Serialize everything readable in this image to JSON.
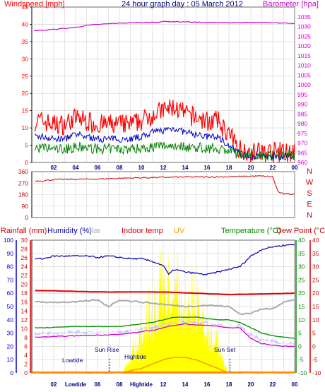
{
  "title": "24 hour graph day : 05 March 2012",
  "colors": {
    "wind": "#ff0000",
    "baro": "#cc00cc",
    "avgwind": "#0000cc",
    "minwind": "#008000",
    "dir": "#cc0000",
    "humidity": "#0000aa",
    "indoor": "#dd0000",
    "solar": "#aaaaaa",
    "uv": "#ff9900",
    "temperature": "#008800",
    "dewpoint": "#cc0000",
    "sunshine": "#ffff00",
    "rain": "#ff8800",
    "tempband": "#c8c8ff",
    "axisblue": "#0000cc",
    "axisgreen": "#008800",
    "axisred": "#cc0000"
  },
  "chart_data": [
    {
      "type": "line",
      "title": "24 hour graph day : 05 March 2012",
      "series": [
        {
          "name": "Windspeed [mph]",
          "unit": "mph",
          "x": [
            1,
            2,
            3,
            4,
            5,
            6,
            7,
            8,
            9,
            10,
            11,
            12,
            13,
            14,
            15,
            16,
            17,
            18,
            19,
            20,
            21,
            22,
            23,
            24
          ],
          "values": [
            12,
            11,
            11,
            13,
            12,
            11,
            11,
            11,
            11,
            12,
            14,
            15,
            16,
            14,
            13,
            12,
            12,
            8,
            4,
            3,
            3,
            3,
            3,
            3
          ]
        },
        {
          "name": "Barometer [hpa]",
          "unit": "hpa",
          "x": [
            1,
            2,
            3,
            4,
            5,
            6,
            7,
            8,
            9,
            10,
            11,
            12,
            13,
            14,
            15,
            16,
            17,
            18,
            19,
            20,
            21,
            22,
            23,
            24
          ],
          "values": [
            1028,
            1028.5,
            1029,
            1029.6,
            1030.5,
            1031,
            1031.4,
            1031.7,
            1032,
            1032,
            1032.2,
            1032.5,
            1032.5,
            1032.4,
            1032.2,
            1032,
            1032,
            1032,
            1032,
            1032,
            1032,
            1031.8,
            1031.8,
            1031.5
          ]
        }
      ],
      "left_axis": {
        "ylim": [
          0,
          45
        ],
        "ticks": [
          0,
          5,
          10,
          15,
          20,
          25,
          30,
          35,
          40,
          45
        ],
        "label": "Windspeed [mph]"
      },
      "right_axis": {
        "ylim": [
          960,
          1040
        ],
        "ticks": [
          960,
          965,
          970,
          975,
          980,
          985,
          990,
          995,
          1000,
          1005,
          1010,
          1015,
          1020,
          1025,
          1030,
          1035
        ],
        "label": "Barometer [hpa]"
      },
      "x_ticks": [
        "02",
        "04",
        "06",
        "08",
        "10",
        "12",
        "14",
        "16",
        "18",
        "20",
        "22",
        "00"
      ],
      "grid": true
    },
    {
      "type": "line",
      "series": [
        {
          "name": "Wind direction",
          "x": [
            1,
            2,
            4,
            6,
            8,
            10,
            12,
            14,
            16,
            18,
            19,
            20,
            21,
            22,
            22.5,
            23,
            24
          ],
          "values": [
            288,
            298,
            300,
            302,
            308,
            312,
            315,
            318,
            318,
            320,
            322,
            325,
            325,
            320,
            200,
            185,
            185
          ]
        }
      ],
      "left_axis": {
        "ylim": [
          0,
          360
        ],
        "ticks": [
          0,
          90,
          180,
          270,
          360
        ]
      },
      "right_labels": [
        "N",
        "W",
        "S",
        "E",
        "N"
      ],
      "x_ticks": [
        "02",
        "04",
        "06",
        "08",
        "10",
        "12",
        "14",
        "16",
        "18",
        "20",
        "22",
        "00"
      ]
    },
    {
      "type": "line",
      "series": [
        {
          "name": "Humidity (%)",
          "x": [
            1,
            2,
            3,
            4,
            5,
            6,
            7,
            8,
            9,
            10,
            11,
            12,
            12.5,
            13,
            14,
            15,
            16,
            17,
            18,
            19,
            20,
            21,
            22,
            23,
            24
          ],
          "values": [
            86,
            88,
            88,
            88,
            88,
            87,
            88,
            87,
            86,
            86,
            84,
            81,
            74,
            78,
            76,
            75,
            74,
            76,
            78,
            80,
            88,
            93,
            95,
            96,
            97
          ]
        },
        {
          "name": "Indoor temp",
          "x": [
            1,
            6,
            12,
            18,
            24
          ],
          "values": [
            21,
            20.5,
            20.5,
            19.5,
            20
          ]
        },
        {
          "name": "Solar",
          "x": [
            1,
            4,
            6,
            7,
            8,
            10,
            12,
            14,
            16,
            18,
            19,
            20,
            21,
            22,
            23,
            24
          ],
          "values": [
            16,
            16,
            16.5,
            15,
            16.5,
            16,
            15.5,
            15,
            15.3,
            15,
            13.3,
            13.5,
            14.4,
            14.6,
            16,
            16.5
          ]
        },
        {
          "name": "Temperature (°C)",
          "x": [
            1,
            4,
            8,
            10,
            11,
            12,
            13,
            14,
            15,
            16,
            17,
            18,
            19,
            20,
            21,
            22,
            23,
            24
          ],
          "values": [
            7,
            7.5,
            7.5,
            8.5,
            9,
            10,
            11,
            11,
            11,
            10.5,
            10,
            10,
            9,
            7,
            5,
            4,
            3.5,
            3
          ]
        },
        {
          "name": "Dew Point (°C)",
          "x": [
            1,
            4,
            8,
            10,
            11,
            12,
            13,
            14,
            15,
            16,
            17,
            18,
            19,
            20,
            21,
            22,
            23,
            24
          ],
          "values": [
            3.5,
            4,
            4.5,
            5.5,
            6,
            7,
            8,
            8.5,
            8,
            8,
            7.5,
            7,
            7,
            3,
            1,
            0.5,
            0,
            0
          ]
        },
        {
          "name": "UV",
          "x": [
            1,
            8,
            10,
            11,
            12,
            13,
            14,
            15,
            16,
            17,
            18,
            24
          ],
          "values": [
            0,
            0,
            1,
            2,
            3,
            3.5,
            3.5,
            3,
            2,
            1,
            0,
            0
          ]
        },
        {
          "name": "Rainfall (mm)",
          "x": [
            1,
            24
          ],
          "values": [
            0,
            0
          ]
        }
      ],
      "left_axis_humidity": {
        "ylim": [
          0,
          100
        ],
        "ticks": [
          0,
          10,
          20,
          30,
          40,
          50,
          60,
          70,
          80,
          90,
          100
        ]
      },
      "left_axis_rain": {
        "ylim": [
          0,
          30
        ],
        "ticks": [
          0,
          2,
          4,
          6,
          8,
          10,
          12,
          14,
          16,
          18,
          20,
          22,
          24,
          26,
          28,
          30
        ]
      },
      "right_axis_temp": {
        "ylim": [
          -10,
          40
        ],
        "ticks": [
          -10,
          -5,
          0,
          5,
          10,
          15,
          20,
          25,
          30,
          35,
          40
        ]
      },
      "right_axis_dew": {
        "ylim": [
          -10,
          40
        ],
        "ticks": [
          -10,
          -5,
          0,
          5,
          10,
          15,
          20,
          25,
          30,
          35,
          40
        ]
      },
      "x_ticks": [
        "02",
        "Lowtide",
        "06",
        "08",
        "Hightide",
        "12",
        "14",
        "16",
        "18",
        "20",
        "22",
        "00"
      ],
      "annotations": [
        "Lowtide",
        "Sun Rise",
        "Hightide",
        "Sun Set"
      ]
    }
  ],
  "labels": {
    "windspeed": "Windspeed [mph]",
    "barometer": "Barometer [hpa]",
    "rainfall": "Rainfall (mm)",
    "humidity": "Humidity (%)",
    "solar": "olar",
    "indoor": "Indoor temp",
    "uv": "UV",
    "temperature": "Temperature (°C)",
    "dewpoint": "Dew Point (°C)",
    "lowtide": "Lowtide",
    "sunrise": "Sun Rise",
    "hightide": "Hightide",
    "sunset": "Sun Set"
  }
}
